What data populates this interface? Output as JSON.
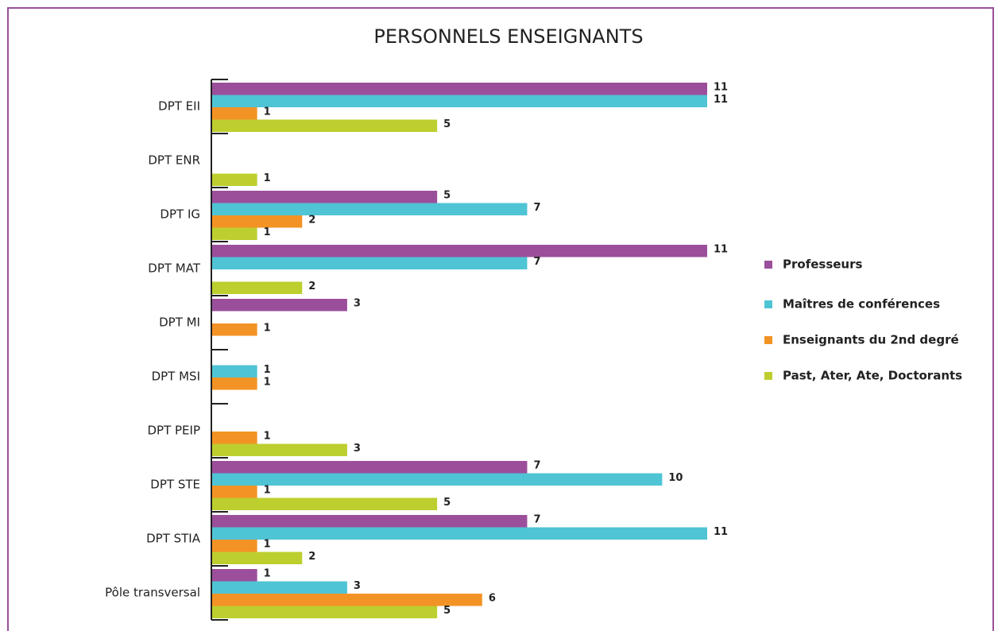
{
  "chart_data": {
    "type": "barh",
    "title": "PERSONNELS ENSEIGNANTS",
    "categories": [
      "DPT EII",
      "DPT ENR",
      "DPT IG",
      "DPT MAT",
      "DPT MI",
      "DPT MSI",
      "DPT PEIP",
      "DPT STE",
      "DPT STIA",
      "Pôle transversal"
    ],
    "series": [
      {
        "name": "Professeurs",
        "color": "#9b4f9b",
        "values": [
          11,
          null,
          5,
          11,
          3,
          null,
          null,
          7,
          7,
          1
        ]
      },
      {
        "name": "Maîtres de conférences",
        "color": "#4fc4d4",
        "values": [
          11,
          null,
          7,
          7,
          null,
          1,
          null,
          10,
          11,
          3
        ]
      },
      {
        "name": "Enseignants du 2nd degré",
        "color": "#f39325",
        "values": [
          1,
          null,
          2,
          null,
          1,
          1,
          1,
          1,
          1,
          6
        ]
      },
      {
        "name": "Past, Ater, Ate, Doctorants",
        "color": "#bccf2e",
        "values": [
          5,
          1,
          1,
          2,
          null,
          null,
          3,
          5,
          2,
          5
        ]
      }
    ]
  }
}
